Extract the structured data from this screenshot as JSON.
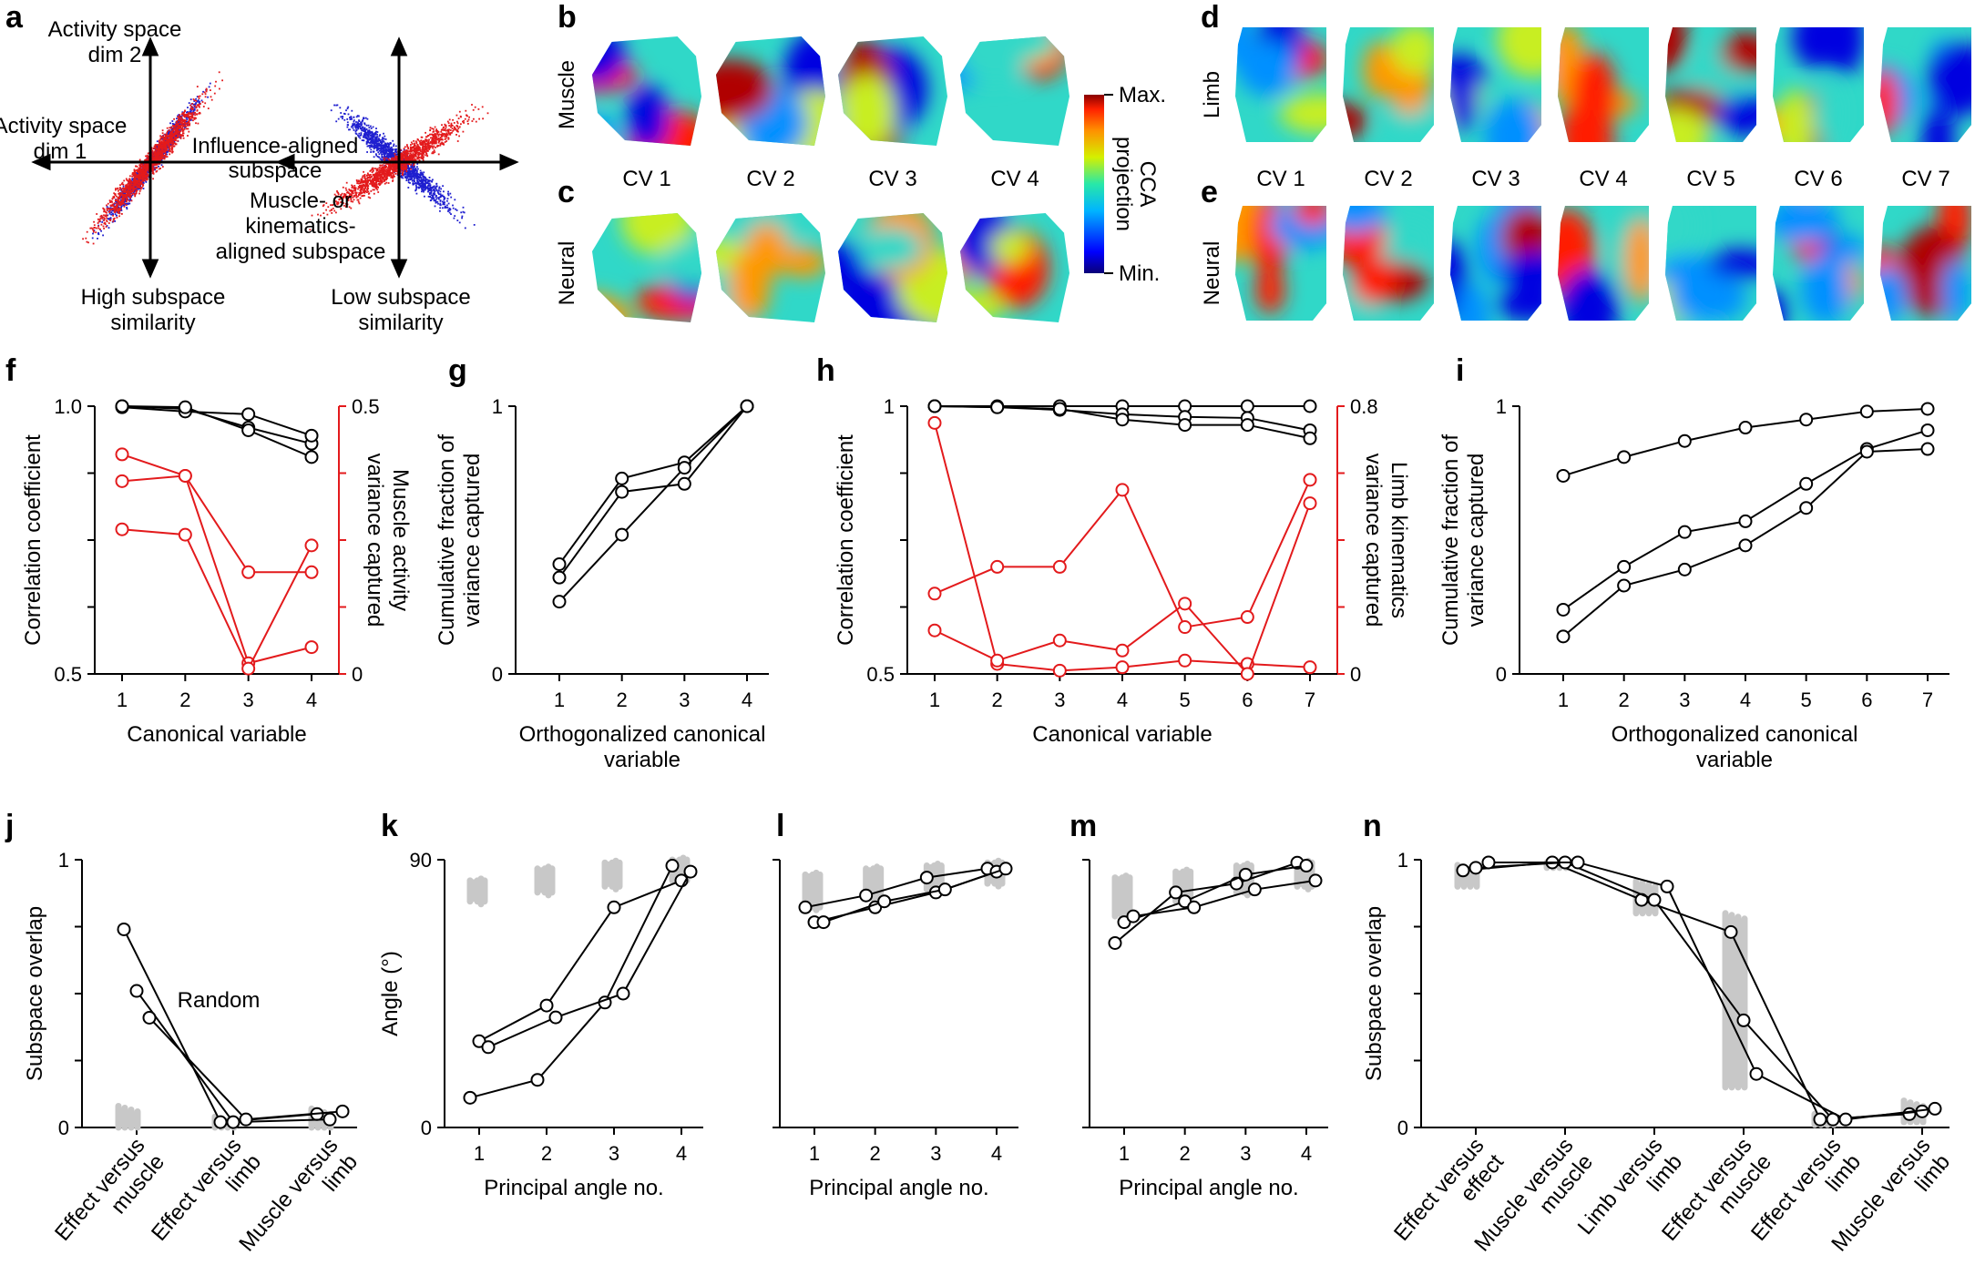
{
  "panel_labels": {
    "a": "a",
    "b": "b",
    "c": "c",
    "d": "d",
    "e": "e",
    "f": "f",
    "g": "g",
    "h": "h",
    "i": "i",
    "j": "j",
    "k": "k",
    "l": "l",
    "m": "m",
    "n": "n"
  },
  "schematic": {
    "dim2": "Activity space dim 2",
    "dim1": "Activity space dim 1",
    "influence": "Influence-aligned subspace",
    "muscle": "Muscle- or kinematics-aligned subspace",
    "high": "High subspace similarity",
    "low": "Low subspace similarity"
  },
  "maps": {
    "row_muscle": "Muscle",
    "row_neural": "Neural",
    "row_limb": "Limb",
    "cv_labels_4": [
      "CV 1",
      "CV 2",
      "CV 3",
      "CV 4"
    ],
    "cv_labels_7": [
      "CV 1",
      "CV 2",
      "CV 3",
      "CV 4",
      "CV 5",
      "CV 6",
      "CV 7"
    ],
    "colorbar": {
      "max": "Max.",
      "min": "Min.",
      "title": "CCA projection"
    }
  },
  "colors": {
    "black": "#000000",
    "red": "#e31a1c",
    "blue": "#1f1fcf",
    "gray": "#c8c8c8"
  },
  "chart_data": [
    {
      "id": "f",
      "type": "line",
      "xlabel": "Canonical variable",
      "ylabel": "Correlation coefficient",
      "ylabel_right": "Muscle activity variance captured",
      "x": [
        1,
        2,
        3,
        4
      ],
      "xticks": [
        "1",
        "2",
        "3",
        "4"
      ],
      "ylim": [
        0.5,
        1.0
      ],
      "yticks": [
        "0.5",
        "1.0"
      ],
      "ylim_right": [
        0,
        0.5
      ],
      "yticks_right": [
        "0",
        "0.5"
      ],
      "series_left": [
        [
          1.0,
          0.995,
          0.96,
          0.93
        ],
        [
          0.998,
          0.99,
          0.985,
          0.945
        ],
        [
          1.0,
          0.998,
          0.955,
          0.905
        ]
      ],
      "series_right": [
        [
          0.41,
          0.37,
          0.02,
          0.05
        ],
        [
          0.36,
          0.37,
          0.19,
          0.19
        ],
        [
          0.27,
          0.26,
          0.01,
          0.24
        ]
      ]
    },
    {
      "id": "g",
      "type": "line",
      "xlabel": "Orthogonalized canonical variable",
      "ylabel": "Cumulative fraction of variance captured",
      "x": [
        1,
        2,
        3,
        4
      ],
      "xticks": [
        "1",
        "2",
        "3",
        "4"
      ],
      "ylim": [
        0,
        1
      ],
      "yticks": [
        "0",
        "1"
      ],
      "series": [
        [
          0.41,
          0.73,
          0.79,
          1.0
        ],
        [
          0.36,
          0.68,
          0.71,
          1.0
        ],
        [
          0.27,
          0.52,
          0.77,
          1.0
        ]
      ]
    },
    {
      "id": "h",
      "type": "line",
      "xlabel": "Canonical variable",
      "ylabel": "Correlation coefficient",
      "ylabel_right": "Limb kinematics variance captured",
      "x": [
        1,
        2,
        3,
        4,
        5,
        6,
        7
      ],
      "xticks": [
        "1",
        "2",
        "3",
        "4",
        "5",
        "6",
        "7"
      ],
      "ylim": [
        0.5,
        1.0
      ],
      "yticks": [
        "0.5",
        "1"
      ],
      "ylim_right": [
        0,
        0.8
      ],
      "yticks_right": [
        "0",
        "0.8"
      ],
      "series_left": [
        [
          1.0,
          1.0,
          1.0,
          1.0,
          1.0,
          1.0,
          1.0
        ],
        [
          1.0,
          0.998,
          0.993,
          0.985,
          0.98,
          0.978,
          0.955
        ],
        [
          1.0,
          0.998,
          0.995,
          0.975,
          0.965,
          0.965,
          0.94
        ]
      ],
      "series_right": [
        [
          0.75,
          0.03,
          0.01,
          0.02,
          0.04,
          0.03,
          0.02
        ],
        [
          0.24,
          0.32,
          0.32,
          0.55,
          0.14,
          0.17,
          0.58
        ],
        [
          0.13,
          0.04,
          0.1,
          0.07,
          0.21,
          0.0,
          0.51
        ]
      ]
    },
    {
      "id": "i",
      "type": "line",
      "xlabel": "Orthogonalized canonical variable",
      "ylabel": "Cumulative fraction of variance captured",
      "x": [
        1,
        2,
        3,
        4,
        5,
        6,
        7
      ],
      "xticks": [
        "1",
        "2",
        "3",
        "4",
        "5",
        "6",
        "7"
      ],
      "ylim": [
        0,
        1
      ],
      "yticks": [
        "0",
        "1"
      ],
      "series": [
        [
          0.74,
          0.81,
          0.87,
          0.92,
          0.95,
          0.98,
          0.99
        ],
        [
          0.24,
          0.4,
          0.53,
          0.57,
          0.71,
          0.84,
          0.91
        ],
        [
          0.14,
          0.33,
          0.39,
          0.48,
          0.62,
          0.83,
          0.84
        ]
      ]
    },
    {
      "id": "j",
      "type": "scatter",
      "xlabel": "",
      "ylabel": "Subspace overlap",
      "categories": [
        "Effect versus muscle",
        "Effect versus limb",
        "Muscle versus limb"
      ],
      "ylim": [
        0,
        1
      ],
      "yticks": [
        "0",
        "1"
      ],
      "annotation": "Random",
      "series": [
        [
          0.74,
          0.02,
          0.05
        ],
        [
          0.51,
          0.02,
          0.03
        ],
        [
          0.41,
          0.03,
          0.06
        ]
      ]
    },
    {
      "id": "k",
      "type": "line",
      "xlabel": "Principal angle no.",
      "ylabel": "Angle (°)",
      "x": [
        1,
        2,
        3,
        4
      ],
      "xticks": [
        "1",
        "2",
        "3",
        "4"
      ],
      "ylim": [
        0,
        90
      ],
      "yticks": [
        "0",
        "90"
      ],
      "random_range": [
        [
          76,
          83
        ],
        [
          79,
          87
        ],
        [
          81,
          89
        ],
        [
          83,
          90
        ]
      ],
      "series": [
        [
          10,
          16,
          42,
          88
        ],
        [
          29,
          41,
          74,
          83
        ],
        [
          27,
          37,
          45,
          86
        ]
      ]
    },
    {
      "id": "l",
      "type": "line",
      "xlabel": "Principal angle no.",
      "ylabel": "",
      "x": [
        1,
        2,
        3,
        4
      ],
      "xticks": [
        "1",
        "2",
        "3",
        "4"
      ],
      "ylim": [
        0,
        90
      ],
      "yticks": [],
      "random_range": [
        [
          74,
          85
        ],
        [
          77,
          87
        ],
        [
          80,
          88
        ],
        [
          82,
          89
        ]
      ],
      "series": [
        [
          74,
          78,
          84,
          87
        ],
        [
          69,
          74,
          79,
          86
        ],
        [
          69,
          76,
          80,
          87
        ]
      ]
    },
    {
      "id": "m",
      "type": "line",
      "xlabel": "Principal angle no.",
      "ylabel": "",
      "x": [
        1,
        2,
        3,
        4
      ],
      "xticks": [
        "1",
        "2",
        "3",
        "4"
      ],
      "ylim": [
        0,
        90
      ],
      "yticks": [],
      "random_range": [
        [
          71,
          84
        ],
        [
          76,
          86
        ],
        [
          79,
          88
        ],
        [
          81,
          89
        ]
      ],
      "series": [
        [
          62,
          79,
          82,
          89
        ],
        [
          69,
          76,
          85,
          88
        ],
        [
          71,
          74,
          80,
          83
        ]
      ]
    },
    {
      "id": "n",
      "type": "scatter",
      "xlabel": "",
      "ylabel": "Subspace overlap",
      "categories": [
        "Effect versus effect",
        "Muscle versus muscle",
        "Limb versus limb",
        "Effect versus muscle",
        "Effect versus limb",
        "Muscle versus limb"
      ],
      "ylim": [
        0,
        1
      ],
      "yticks": [
        "0",
        "1"
      ],
      "series": [
        [
          0.96,
          0.99,
          0.85,
          0.73,
          0.03,
          0.05
        ],
        [
          0.97,
          0.99,
          0.85,
          0.4,
          0.03,
          0.06
        ],
        [
          0.99,
          0.99,
          0.9,
          0.2,
          0.03,
          0.07
        ]
      ]
    }
  ]
}
